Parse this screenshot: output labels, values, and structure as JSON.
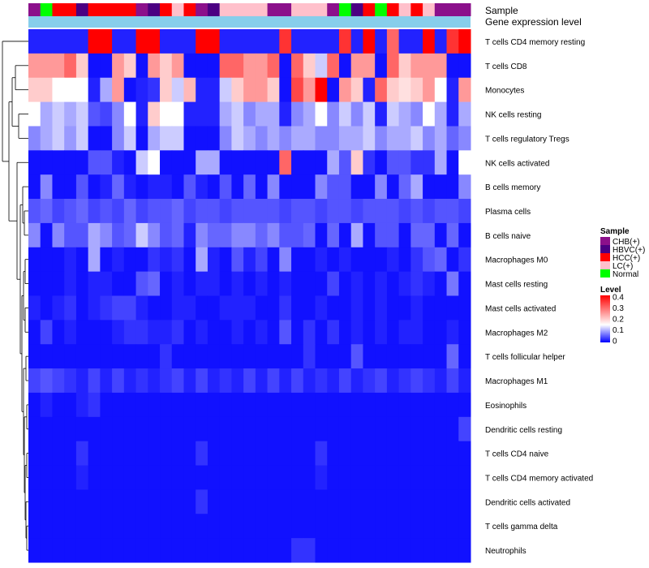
{
  "chart_data": {
    "type": "heatmap",
    "track_labels": {
      "sample": "Sample",
      "level": "Gene expression level"
    },
    "rows": [
      "T cells CD4 memory resting",
      "T cells CD8",
      "Monocytes",
      "NK cells resting",
      "T cells regulatory  Tregs",
      "NK cells activated",
      "B cells memory",
      "Plasma cells",
      "B cells naive",
      "Macrophages M0",
      "Mast cells resting",
      "Mast cells activated",
      "Macrophages M2",
      "T cells follicular helper",
      "Macrophages M1",
      "Eosinophils",
      "Dendritic cells resting",
      "T cells CD4 naive",
      "T cells CD4 memory activated",
      "Dendritic cells activated",
      "T cells gamma delta",
      "Neutrophils"
    ],
    "samples": [
      "CHB(+)",
      "Normal",
      "HCC(+)",
      "HCC(+)",
      "HBVC(+)",
      "HCC(+)",
      "HCC(+)",
      "HCC(+)",
      "HCC(+)",
      "CHB(+)",
      "HBVC(+)",
      "HCC(+)",
      "LC(+)",
      "HCC(+)",
      "CHB(+)",
      "HBVC(+)",
      "LC(+)",
      "LC(+)",
      "LC(+)",
      "LC(+)",
      "CHB(+)",
      "CHB(+)",
      "LC(+)",
      "LC(+)",
      "LC(+)",
      "CHB(+)",
      "Normal",
      "HBVC(+)",
      "HCC(+)",
      "Normal",
      "HCC(+)",
      "LC(+)",
      "HCC(+)",
      "LC(+)",
      "CHB(+)",
      "CHB(+)",
      "CHB(+)"
    ],
    "values": [
      [
        0.02,
        0.02,
        0.02,
        0.02,
        0.02,
        0.4,
        0.4,
        0.02,
        0.02,
        0.4,
        0.4,
        0.02,
        0.02,
        0.02,
        0.4,
        0.4,
        0.02,
        0.02,
        0.02,
        0.02,
        0.02,
        0.35,
        0.02,
        0.02,
        0.02,
        0.02,
        0.35,
        0.02,
        0.4,
        0.02,
        0.3,
        0.02,
        0.02,
        0.4,
        0.02,
        0.35,
        0.4
      ],
      [
        0.25,
        0.25,
        0.25,
        0.3,
        0.2,
        0.01,
        0.01,
        0.25,
        0.2,
        0.01,
        0.25,
        0.2,
        0.25,
        0.01,
        0.01,
        0.01,
        0.3,
        0.3,
        0.25,
        0.25,
        0.3,
        0.01,
        0.3,
        0.2,
        0.12,
        0.3,
        0.01,
        0.25,
        0.25,
        0.01,
        0.3,
        0.2,
        0.25,
        0.25,
        0.25,
        0.01,
        0.01
      ],
      [
        0.2,
        0.2,
        0.15,
        0.15,
        0.15,
        0.02,
        0.1,
        0.25,
        0.01,
        0.02,
        0.03,
        0.2,
        0.12,
        0.22,
        0.02,
        0.02,
        0.12,
        0.2,
        0.25,
        0.25,
        0.2,
        0.01,
        0.33,
        0.25,
        0.4,
        0.01,
        0.25,
        0.2,
        0.02,
        0.3,
        0.2,
        0.18,
        0.2,
        0.25,
        0.15,
        0.02,
        0.25
      ],
      [
        0.15,
        0.1,
        0.12,
        0.1,
        0.12,
        0.05,
        0.04,
        0.08,
        0.15,
        0.02,
        0.2,
        0.15,
        0.15,
        0.02,
        0.02,
        0.02,
        0.1,
        0.12,
        0.08,
        0.1,
        0.1,
        0.02,
        0.08,
        0.1,
        0.15,
        0.08,
        0.12,
        0.08,
        0.12,
        0.02,
        0.12,
        0.1,
        0.08,
        0.15,
        0.1,
        0.02,
        0.1
      ],
      [
        0.08,
        0.1,
        0.12,
        0.09,
        0.12,
        0.01,
        0.01,
        0.08,
        0.12,
        0.01,
        0.1,
        0.12,
        0.12,
        0.01,
        0.01,
        0.01,
        0.08,
        0.12,
        0.1,
        0.08,
        0.1,
        0.08,
        0.1,
        0.1,
        0.08,
        0.08,
        0.1,
        0.1,
        0.12,
        0.08,
        0.1,
        0.1,
        0.12,
        0.08,
        0.1,
        0.06,
        0.08
      ],
      [
        0.01,
        0.01,
        0.01,
        0.01,
        0.01,
        0.05,
        0.05,
        0.02,
        0.01,
        0.12,
        0.15,
        0.01,
        0.01,
        0.01,
        0.1,
        0.1,
        0.01,
        0.01,
        0.01,
        0.01,
        0.01,
        0.3,
        0.01,
        0.01,
        0.01,
        0.1,
        0.05,
        0.2,
        0.03,
        0.01,
        0.05,
        0.05,
        0.03,
        0.03,
        0.1,
        0.01,
        0.15
      ],
      [
        0.01,
        0.08,
        0.01,
        0.01,
        0.05,
        0.01,
        0.02,
        0.06,
        0.02,
        0.01,
        0.02,
        0.02,
        0.01,
        0.05,
        0.02,
        0.01,
        0.05,
        0.01,
        0.06,
        0.01,
        0.08,
        0.01,
        0.01,
        0.01,
        0.08,
        0.05,
        0.05,
        0.01,
        0.01,
        0.08,
        0.01,
        0.06,
        0.1,
        0.01,
        0.01,
        0.01,
        0.08
      ],
      [
        0.05,
        0.06,
        0.04,
        0.05,
        0.06,
        0.04,
        0.05,
        0.04,
        0.06,
        0.04,
        0.05,
        0.05,
        0.06,
        0.04,
        0.05,
        0.05,
        0.04,
        0.05,
        0.05,
        0.05,
        0.05,
        0.04,
        0.05,
        0.05,
        0.04,
        0.05,
        0.05,
        0.04,
        0.05,
        0.05,
        0.05,
        0.04,
        0.05,
        0.04,
        0.05,
        0.05,
        0.04
      ],
      [
        0.08,
        0.01,
        0.08,
        0.05,
        0.05,
        0.1,
        0.08,
        0.05,
        0.06,
        0.12,
        0.08,
        0.05,
        0.06,
        0.02,
        0.08,
        0.06,
        0.06,
        0.08,
        0.08,
        0.06,
        0.08,
        0.05,
        0.05,
        0.06,
        0.01,
        0.06,
        0.01,
        0.1,
        0.01,
        0.05,
        0.05,
        0.01,
        0.06,
        0.06,
        0.01,
        0.06,
        0.01
      ],
      [
        0.01,
        0.01,
        0.01,
        0.02,
        0.01,
        0.1,
        0.01,
        0.02,
        0.01,
        0.01,
        0.03,
        0.02,
        0.03,
        0.01,
        0.1,
        0.02,
        0.01,
        0.05,
        0.02,
        0.04,
        0.01,
        0.08,
        0.01,
        0.01,
        0.02,
        0.01,
        0.02,
        0.01,
        0.01,
        0.01,
        0.02,
        0.01,
        0.03,
        0.05,
        0.06,
        0.01,
        0.03
      ],
      [
        0.01,
        0.01,
        0.01,
        0.02,
        0.01,
        0.02,
        0.02,
        0.01,
        0.01,
        0.05,
        0.06,
        0.01,
        0.02,
        0.01,
        0.02,
        0.02,
        0.01,
        0.02,
        0.01,
        0.02,
        0.01,
        0.02,
        0.01,
        0.01,
        0.01,
        0.04,
        0.01,
        0.02,
        0.01,
        0.02,
        0.01,
        0.02,
        0.03,
        0.02,
        0.01,
        0.07,
        0.01
      ],
      [
        0.02,
        0.01,
        0.02,
        0.03,
        0.01,
        0.02,
        0.03,
        0.04,
        0.04,
        0.02,
        0.01,
        0.01,
        0.02,
        0.02,
        0.01,
        0.01,
        0.02,
        0.02,
        0.02,
        0.01,
        0.01,
        0.03,
        0.01,
        0.01,
        0.02,
        0.01,
        0.01,
        0.02,
        0.01,
        0.02,
        0.01,
        0.01,
        0.02,
        0.01,
        0.01,
        0.01,
        0.01
      ],
      [
        0.01,
        0.04,
        0.01,
        0.02,
        0.01,
        0.01,
        0.01,
        0.02,
        0.03,
        0.03,
        0.02,
        0.02,
        0.03,
        0.01,
        0.02,
        0.01,
        0.01,
        0.02,
        0.01,
        0.02,
        0.01,
        0.05,
        0.01,
        0.03,
        0.01,
        0.03,
        0.01,
        0.02,
        0.01,
        0.02,
        0.01,
        0.02,
        0.02,
        0.01,
        0.01,
        0.02,
        0.01
      ],
      [
        0.01,
        0.01,
        0.01,
        0.01,
        0.01,
        0.01,
        0.01,
        0.01,
        0.01,
        0.01,
        0.01,
        0.03,
        0.01,
        0.01,
        0.01,
        0.01,
        0.01,
        0.01,
        0.01,
        0.01,
        0.01,
        0.01,
        0.01,
        0.03,
        0.01,
        0.01,
        0.01,
        0.05,
        0.01,
        0.01,
        0.01,
        0.01,
        0.01,
        0.01,
        0.01,
        0.06,
        0.01
      ],
      [
        0.04,
        0.05,
        0.04,
        0.03,
        0.02,
        0.04,
        0.02,
        0.04,
        0.02,
        0.03,
        0.02,
        0.03,
        0.04,
        0.02,
        0.04,
        0.02,
        0.03,
        0.02,
        0.04,
        0.02,
        0.04,
        0.02,
        0.04,
        0.02,
        0.03,
        0.02,
        0.04,
        0.02,
        0.03,
        0.04,
        0.02,
        0.03,
        0.04,
        0.03,
        0.02,
        0.04,
        0.02
      ],
      [
        0.01,
        0.02,
        0.01,
        0.01,
        0.02,
        0.03,
        0.01,
        0.01,
        0.01,
        0.01,
        0.01,
        0.01,
        0.01,
        0.01,
        0.01,
        0.01,
        0.01,
        0.01,
        0.01,
        0.01,
        0.01,
        0.01,
        0.01,
        0.01,
        0.01,
        0.01,
        0.01,
        0.01,
        0.01,
        0.01,
        0.01,
        0.01,
        0.01,
        0.01,
        0.01,
        0.01,
        0.01
      ],
      [
        0.01,
        0.01,
        0.01,
        0.01,
        0.01,
        0.01,
        0.01,
        0.01,
        0.01,
        0.01,
        0.01,
        0.01,
        0.01,
        0.01,
        0.01,
        0.01,
        0.01,
        0.01,
        0.01,
        0.01,
        0.01,
        0.01,
        0.01,
        0.01,
        0.01,
        0.01,
        0.01,
        0.01,
        0.01,
        0.01,
        0.01,
        0.01,
        0.01,
        0.01,
        0.01,
        0.01,
        0.04
      ],
      [
        0.01,
        0.01,
        0.01,
        0.01,
        0.03,
        0.01,
        0.01,
        0.01,
        0.01,
        0.01,
        0.01,
        0.01,
        0.01,
        0.01,
        0.03,
        0.01,
        0.01,
        0.01,
        0.01,
        0.01,
        0.01,
        0.01,
        0.01,
        0.01,
        0.03,
        0.01,
        0.01,
        0.01,
        0.01,
        0.01,
        0.01,
        0.01,
        0.01,
        0.01,
        0.01,
        0.01,
        0.01
      ],
      [
        0.01,
        0.01,
        0.01,
        0.01,
        0.02,
        0.01,
        0.01,
        0.01,
        0.01,
        0.01,
        0.01,
        0.01,
        0.01,
        0.01,
        0.01,
        0.01,
        0.01,
        0.01,
        0.01,
        0.01,
        0.01,
        0.01,
        0.01,
        0.01,
        0.02,
        0.01,
        0.01,
        0.01,
        0.01,
        0.01,
        0.01,
        0.01,
        0.01,
        0.01,
        0.01,
        0.01,
        0.01
      ],
      [
        0.01,
        0.01,
        0.01,
        0.01,
        0.01,
        0.01,
        0.01,
        0.01,
        0.01,
        0.01,
        0.01,
        0.01,
        0.01,
        0.01,
        0.03,
        0.01,
        0.01,
        0.01,
        0.01,
        0.01,
        0.01,
        0.01,
        0.01,
        0.01,
        0.01,
        0.01,
        0.01,
        0.01,
        0.01,
        0.01,
        0.01,
        0.01,
        0.01,
        0.01,
        0.01,
        0.01,
        0.01
      ],
      [
        0.01,
        0.01,
        0.01,
        0.01,
        0.01,
        0.01,
        0.01,
        0.01,
        0.01,
        0.01,
        0.01,
        0.01,
        0.01,
        0.01,
        0.01,
        0.01,
        0.01,
        0.01,
        0.01,
        0.01,
        0.01,
        0.01,
        0.01,
        0.01,
        0.01,
        0.01,
        0.01,
        0.01,
        0.01,
        0.01,
        0.01,
        0.01,
        0.01,
        0.01,
        0.01,
        0.01,
        0.01
      ],
      [
        0.01,
        0.01,
        0.01,
        0.01,
        0.01,
        0.01,
        0.01,
        0.01,
        0.01,
        0.01,
        0.01,
        0.01,
        0.01,
        0.01,
        0.01,
        0.01,
        0.01,
        0.01,
        0.01,
        0.01,
        0.01,
        0.01,
        0.03,
        0.03,
        0.01,
        0.01,
        0.01,
        0.01,
        0.01,
        0.01,
        0.01,
        0.01,
        0.01,
        0.01,
        0.01,
        0.01,
        0.01
      ]
    ],
    "sample_legend": {
      "title": "Sample",
      "items": [
        {
          "label": "CHB(+)",
          "color": "#8b108b"
        },
        {
          "label": "HBVC(+)",
          "color": "#4b0082"
        },
        {
          "label": "HCC(+)",
          "color": "#ff0000"
        },
        {
          "label": "LC(+)",
          "color": "#ffc0cb"
        },
        {
          "label": "Normal",
          "color": "#00ff00"
        }
      ]
    },
    "level_legend": {
      "title": "Level",
      "ticks": [
        "0.4",
        "0.3",
        "0.2",
        "0.1",
        "0"
      ],
      "range": [
        0,
        0.4
      ]
    },
    "level_track_color": "#87ceeb",
    "color_scale": {
      "low": "#0000ff",
      "mid": "#ffffff",
      "high": "#ff0000",
      "mid_value": 0.15
    }
  }
}
